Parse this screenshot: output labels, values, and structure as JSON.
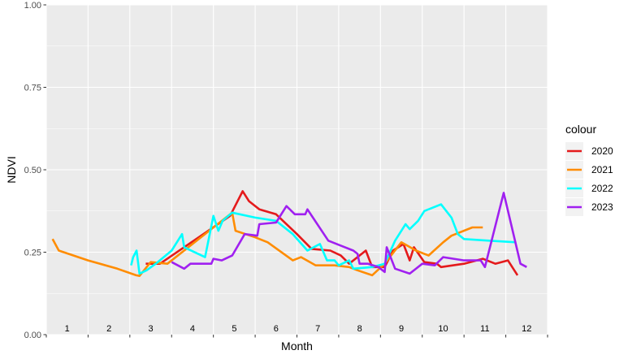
{
  "chart_data": {
    "type": "line",
    "title": "",
    "xlabel": "Month",
    "ylabel": "NDVI",
    "xlim": [
      0.5,
      12.5
    ],
    "ylim": [
      0,
      1
    ],
    "yticks": [
      "0.00",
      "0.25",
      "0.50",
      "0.75",
      "1.00"
    ],
    "month_labels": [
      "1",
      "2",
      "3",
      "4",
      "5",
      "6",
      "7",
      "8",
      "9",
      "10",
      "11",
      "12"
    ],
    "legend": {
      "title": "colour",
      "position": "right"
    },
    "grid": true,
    "series": [
      {
        "name": "2020",
        "color": "#e41a1c",
        "points": [
          [
            2.88,
            0.215
          ],
          [
            3.22,
            0.215
          ],
          [
            4.9,
            0.36
          ],
          [
            5.2,
            0.435
          ],
          [
            5.35,
            0.405
          ],
          [
            5.6,
            0.38
          ],
          [
            6.0,
            0.365
          ],
          [
            6.5,
            0.305
          ],
          [
            6.85,
            0.26
          ],
          [
            7.3,
            0.255
          ],
          [
            7.55,
            0.24
          ],
          [
            7.75,
            0.215
          ],
          [
            8.15,
            0.255
          ],
          [
            8.3,
            0.205
          ],
          [
            8.6,
            0.205
          ],
          [
            8.8,
            0.255
          ],
          [
            9.05,
            0.275
          ],
          [
            9.2,
            0.225
          ],
          [
            9.3,
            0.265
          ],
          [
            9.55,
            0.22
          ],
          [
            9.85,
            0.215
          ],
          [
            9.95,
            0.205
          ],
          [
            10.5,
            0.215
          ],
          [
            10.95,
            0.23
          ],
          [
            11.25,
            0.215
          ],
          [
            11.55,
            0.225
          ],
          [
            11.78,
            0.18
          ]
        ]
      },
      {
        "name": "2021",
        "color": "#ff8c00",
        "points": [
          [
            0.65,
            0.29
          ],
          [
            0.8,
            0.255
          ],
          [
            1.5,
            0.225
          ],
          [
            2.2,
            0.2
          ],
          [
            2.65,
            0.18
          ],
          [
            2.73,
            0.178
          ],
          [
            3.0,
            0.22
          ],
          [
            3.4,
            0.215
          ],
          [
            4.6,
            0.335
          ],
          [
            4.95,
            0.37
          ],
          [
            5.03,
            0.315
          ],
          [
            5.5,
            0.295
          ],
          [
            5.8,
            0.28
          ],
          [
            6.4,
            0.225
          ],
          [
            6.6,
            0.235
          ],
          [
            6.95,
            0.21
          ],
          [
            7.4,
            0.21
          ],
          [
            7.75,
            0.205
          ],
          [
            7.95,
            0.195
          ],
          [
            8.3,
            0.18
          ],
          [
            8.6,
            0.215
          ],
          [
            9.0,
            0.28
          ],
          [
            9.35,
            0.255
          ],
          [
            9.65,
            0.24
          ],
          [
            10.0,
            0.28
          ],
          [
            10.2,
            0.3
          ],
          [
            10.7,
            0.325
          ],
          [
            10.95,
            0.325
          ]
        ]
      },
      {
        "name": "2022",
        "color": "#00ffff",
        "points": [
          [
            2.53,
            0.21
          ],
          [
            2.58,
            0.235
          ],
          [
            2.66,
            0.255
          ],
          [
            2.73,
            0.185
          ],
          [
            2.9,
            0.195
          ],
          [
            3.12,
            0.215
          ],
          [
            3.5,
            0.255
          ],
          [
            3.75,
            0.305
          ],
          [
            3.8,
            0.265
          ],
          [
            4.3,
            0.235
          ],
          [
            4.5,
            0.36
          ],
          [
            4.62,
            0.315
          ],
          [
            4.72,
            0.345
          ],
          [
            4.95,
            0.37
          ],
          [
            5.5,
            0.355
          ],
          [
            6.0,
            0.345
          ],
          [
            6.4,
            0.305
          ],
          [
            6.75,
            0.255
          ],
          [
            7.05,
            0.275
          ],
          [
            7.22,
            0.225
          ],
          [
            7.4,
            0.225
          ],
          [
            7.5,
            0.21
          ],
          [
            7.75,
            0.225
          ],
          [
            7.85,
            0.2
          ],
          [
            8.3,
            0.205
          ],
          [
            8.6,
            0.215
          ],
          [
            8.85,
            0.285
          ],
          [
            9.1,
            0.335
          ],
          [
            9.2,
            0.32
          ],
          [
            9.4,
            0.345
          ],
          [
            9.55,
            0.375
          ],
          [
            9.95,
            0.395
          ],
          [
            10.2,
            0.355
          ],
          [
            10.35,
            0.305
          ],
          [
            10.5,
            0.29
          ],
          [
            11.1,
            0.285
          ],
          [
            11.75,
            0.28
          ]
        ]
      },
      {
        "name": "2023",
        "color": "#a020f0",
        "points": [
          [
            3.5,
            0.22
          ],
          [
            3.8,
            0.2
          ],
          [
            3.95,
            0.215
          ],
          [
            4.45,
            0.215
          ],
          [
            4.5,
            0.23
          ],
          [
            4.7,
            0.225
          ],
          [
            4.95,
            0.24
          ],
          [
            5.25,
            0.305
          ],
          [
            5.55,
            0.3
          ],
          [
            5.6,
            0.335
          ],
          [
            6.0,
            0.34
          ],
          [
            6.25,
            0.39
          ],
          [
            6.45,
            0.365
          ],
          [
            6.7,
            0.365
          ],
          [
            6.75,
            0.38
          ],
          [
            7.25,
            0.285
          ],
          [
            7.55,
            0.27
          ],
          [
            7.85,
            0.255
          ],
          [
            7.95,
            0.245
          ],
          [
            8.0,
            0.215
          ],
          [
            8.2,
            0.215
          ],
          [
            8.45,
            0.205
          ],
          [
            8.6,
            0.19
          ],
          [
            8.65,
            0.265
          ],
          [
            8.85,
            0.2
          ],
          [
            9.2,
            0.185
          ],
          [
            9.5,
            0.215
          ],
          [
            9.8,
            0.21
          ],
          [
            10.0,
            0.235
          ],
          [
            10.5,
            0.225
          ],
          [
            10.9,
            0.225
          ],
          [
            11.0,
            0.205
          ],
          [
            11.45,
            0.43
          ],
          [
            11.85,
            0.215
          ],
          [
            12.0,
            0.205
          ]
        ]
      }
    ]
  }
}
